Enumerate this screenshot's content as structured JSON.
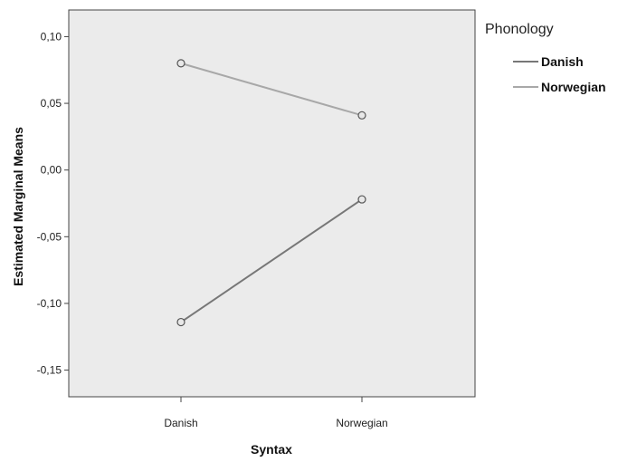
{
  "chart_data": {
    "type": "line",
    "xlabel": "Syntax",
    "ylabel": "Estimated Marginal Means",
    "categories": [
      "Danish",
      "Norwegian"
    ],
    "ylim": [
      -0.17,
      0.12
    ],
    "yticks": [
      0.1,
      0.05,
      0.0,
      -0.05,
      -0.1,
      -0.15
    ],
    "ytick_labels": [
      "0,10",
      "0,05",
      "0,00",
      "-0,05",
      "-0,10",
      "-0,15"
    ],
    "legend": {
      "title": "Phonology",
      "position": "right"
    },
    "grid": false,
    "series": [
      {
        "name": "Danish",
        "values": [
          -0.114,
          -0.022
        ],
        "color": "#777777"
      },
      {
        "name": "Norwegian",
        "values": [
          0.08,
          0.041
        ],
        "color": "#a8a8a8"
      }
    ]
  }
}
